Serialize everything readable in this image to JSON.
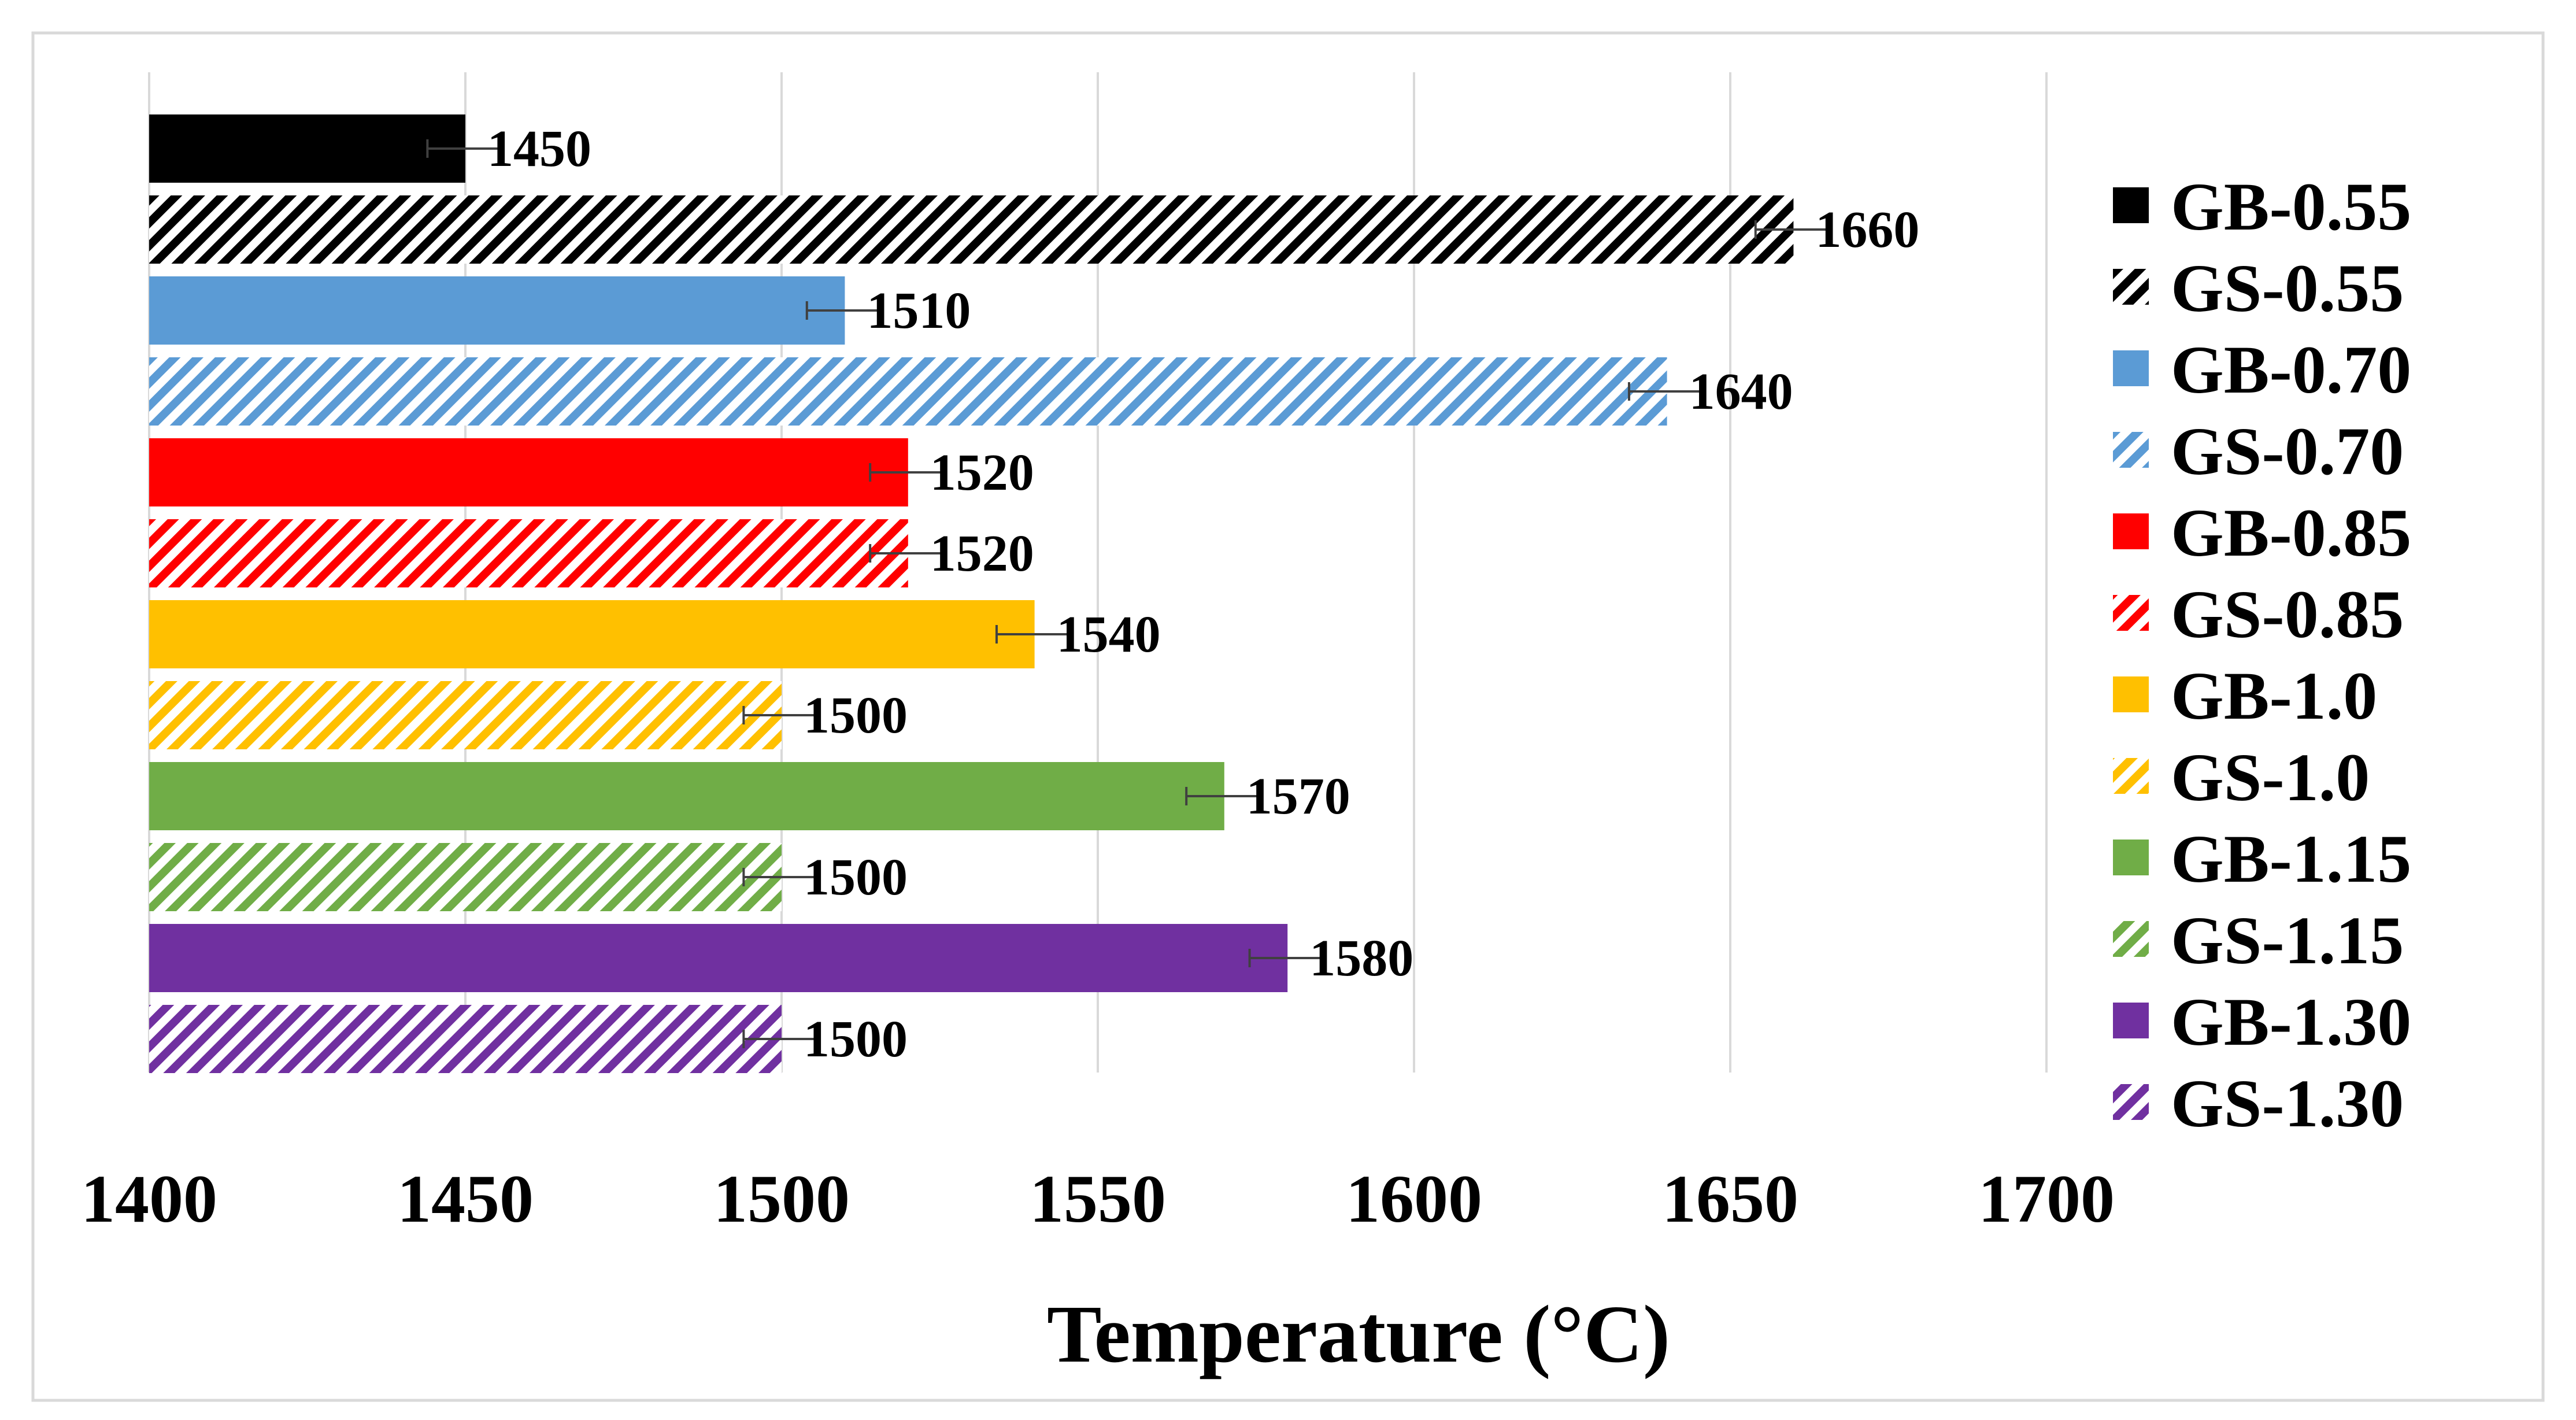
{
  "chart_data": {
    "type": "bar",
    "orientation": "horizontal",
    "title": "",
    "xlabel": "Temperature (°C)",
    "ylabel": "",
    "xlim": [
      1400,
      1700
    ],
    "xticks": [
      1400,
      1450,
      1500,
      1550,
      1600,
      1650,
      1700
    ],
    "tick_labels": [
      "1400",
      "1450",
      "1500",
      "1550",
      "1600",
      "1650",
      "1700"
    ],
    "grid": "vertical",
    "legend_position": "right",
    "error_bars": true,
    "error_halfwidth": 6,
    "series": [
      {
        "name": "GB-0.55",
        "value": 1450,
        "label": "1450",
        "color": "#000000",
        "pattern": "solid"
      },
      {
        "name": "GS-0.55",
        "value": 1660,
        "label": "1660",
        "color": "#000000",
        "pattern": "hatched"
      },
      {
        "name": "GB-0.70",
        "value": 1510,
        "label": "1510",
        "color": "#5b9bd5",
        "pattern": "solid"
      },
      {
        "name": "GS-0.70",
        "value": 1640,
        "label": "1640",
        "color": "#5b9bd5",
        "pattern": "hatched"
      },
      {
        "name": "GB-0.85",
        "value": 1520,
        "label": "1520",
        "color": "#ff0000",
        "pattern": "solid"
      },
      {
        "name": "GS-0.85",
        "value": 1520,
        "label": "1520",
        "color": "#ff0000",
        "pattern": "hatched"
      },
      {
        "name": "GB-1.0",
        "value": 1540,
        "label": "1540",
        "color": "#ffc000",
        "pattern": "solid"
      },
      {
        "name": "GS-1.0",
        "value": 1500,
        "label": "1500",
        "color": "#ffc000",
        "pattern": "hatched"
      },
      {
        "name": "GB-1.15",
        "value": 1570,
        "label": "1570",
        "color": "#70ad47",
        "pattern": "solid"
      },
      {
        "name": "GS-1.15",
        "value": 1500,
        "label": "1500",
        "color": "#70ad47",
        "pattern": "hatched"
      },
      {
        "name": "GB-1.30",
        "value": 1580,
        "label": "1580",
        "color": "#7030a0",
        "pattern": "solid"
      },
      {
        "name": "GS-1.30",
        "value": 1500,
        "label": "1500",
        "color": "#7030a0",
        "pattern": "hatched"
      }
    ]
  }
}
